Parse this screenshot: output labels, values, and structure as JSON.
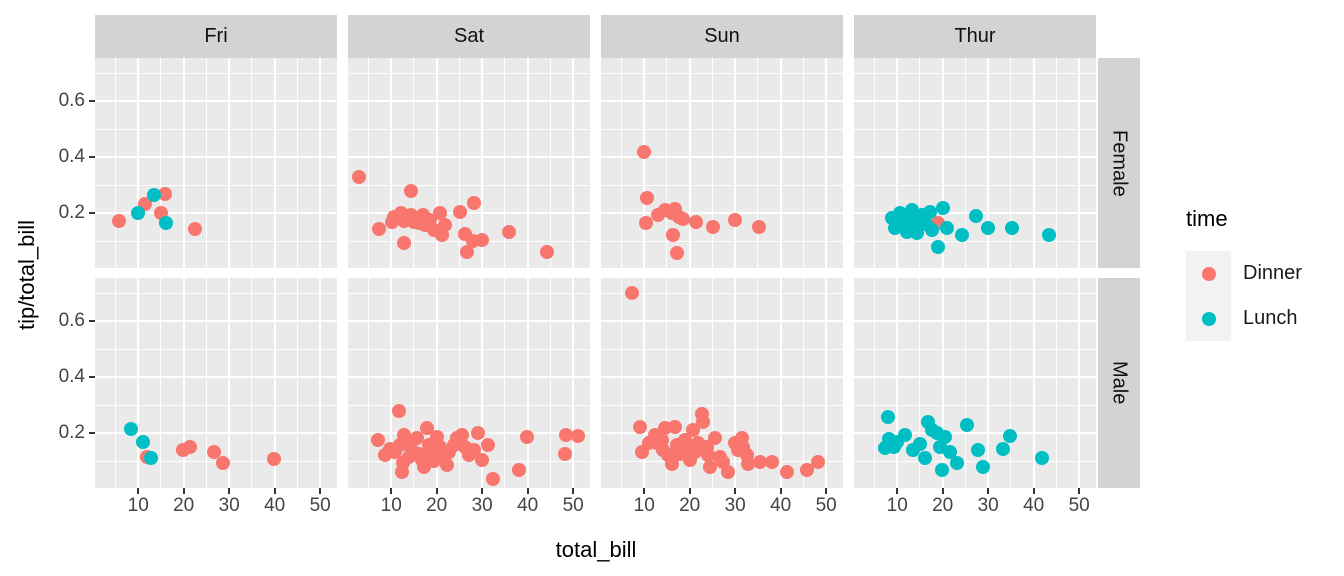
{
  "titles": {
    "x": "total_bill",
    "y": "tip/total_bill"
  },
  "legend": {
    "title": "time",
    "items": [
      {
        "label": "Dinner",
        "color": "#F8766D"
      },
      {
        "label": "Lunch",
        "color": "#00BFC4"
      }
    ]
  },
  "style": {
    "panel_bg": "#EAEAEA",
    "strip_bg": "#D3D3D3",
    "grid_color": "#FFFFFF",
    "dinner_color": "#F8766D",
    "lunch_color": "#00BFC4",
    "tick_text_color": "#454545"
  },
  "chart_data": {
    "type": "scatter",
    "title": "",
    "xlabel": "total_bill",
    "ylabel": "tip/total_bill",
    "facet_cols": [
      "Fri",
      "Sat",
      "Sun",
      "Thur"
    ],
    "facet_rows": [
      "Female",
      "Male"
    ],
    "legend_title": "time",
    "series_names": [
      "Dinner",
      "Lunch"
    ],
    "x_ticks": [
      10,
      20,
      30,
      40,
      50
    ],
    "x_minor_ticks": [
      5,
      15,
      25,
      35,
      45
    ],
    "y_ticks": [
      0.2,
      0.4,
      0.6
    ],
    "y_tick_labels": [
      "0.2",
      "0.4",
      "0.6"
    ],
    "y_minor_ticks": [
      0.1,
      0.3,
      0.5,
      0.7
    ],
    "x_range": [
      0.5,
      53.7
    ],
    "y_range": [
      0.004,
      0.754
    ],
    "grid": true,
    "legend_position": "right",
    "panels": [
      {
        "day": "Fri",
        "sex": "Female",
        "dinner": [
          [
            5.7,
            0.172
          ],
          [
            11.4,
            0.231
          ],
          [
            15.0,
            0.199
          ],
          [
            15.8,
            0.267
          ],
          [
            22.5,
            0.145
          ]
        ],
        "lunch": [
          [
            9.9,
            0.199
          ],
          [
            13.4,
            0.264
          ],
          [
            16.0,
            0.163
          ]
        ]
      },
      {
        "day": "Sat",
        "sex": "Female",
        "dinner": [
          [
            3.0,
            0.33
          ],
          [
            14.4,
            0.28
          ],
          [
            7.4,
            0.142
          ],
          [
            10.2,
            0.169
          ],
          [
            10.7,
            0.187
          ],
          [
            12.2,
            0.199
          ],
          [
            12.9,
            0.172
          ],
          [
            14.4,
            0.193
          ],
          [
            15.1,
            0.169
          ],
          [
            15.6,
            0.181
          ],
          [
            16.2,
            0.163
          ],
          [
            17.0,
            0.193
          ],
          [
            17.5,
            0.157
          ],
          [
            18.6,
            0.175
          ],
          [
            12.9,
            0.092
          ],
          [
            19.3,
            0.139
          ],
          [
            20.8,
            0.199
          ],
          [
            21.1,
            0.121
          ],
          [
            21.9,
            0.157
          ],
          [
            25.2,
            0.205
          ],
          [
            26.3,
            0.127
          ],
          [
            28.1,
            0.235
          ],
          [
            28.0,
            0.1
          ],
          [
            29.9,
            0.104
          ],
          [
            26.6,
            0.062
          ],
          [
            35.8,
            0.133
          ],
          [
            44.2,
            0.062
          ]
        ],
        "lunch": []
      },
      {
        "day": "Sun",
        "sex": "Female",
        "dinner": [
          [
            9.9,
            0.419
          ],
          [
            10.6,
            0.255
          ],
          [
            10.4,
            0.163
          ],
          [
            13.1,
            0.193
          ],
          [
            14.6,
            0.211
          ],
          [
            16.0,
            0.2
          ],
          [
            16.8,
            0.214
          ],
          [
            17.7,
            0.185
          ],
          [
            18.5,
            0.18
          ],
          [
            16.4,
            0.121
          ],
          [
            17.2,
            0.059
          ],
          [
            21.4,
            0.169
          ],
          [
            25.2,
            0.151
          ],
          [
            30.0,
            0.175
          ],
          [
            35.3,
            0.151
          ]
        ],
        "lunch": []
      },
      {
        "day": "Thur",
        "sex": "Female",
        "dinner": [
          [
            19.0,
            0.164
          ]
        ],
        "lunch": [
          [
            8.9,
            0.182
          ],
          [
            9.6,
            0.146
          ],
          [
            10.7,
            0.2
          ],
          [
            11.3,
            0.168
          ],
          [
            12.2,
            0.132
          ],
          [
            12.5,
            0.175
          ],
          [
            13.3,
            0.211
          ],
          [
            13.5,
            0.157
          ],
          [
            14.4,
            0.129
          ],
          [
            14.8,
            0.172
          ],
          [
            15.5,
            0.193
          ],
          [
            16.4,
            0.16
          ],
          [
            17.3,
            0.204
          ],
          [
            17.7,
            0.139
          ],
          [
            19.0,
            0.079
          ],
          [
            20.1,
            0.218
          ],
          [
            21.0,
            0.146
          ],
          [
            24.3,
            0.121
          ],
          [
            27.4,
            0.189
          ],
          [
            30.0,
            0.146
          ],
          [
            35.3,
            0.146
          ],
          [
            43.4,
            0.121
          ]
        ]
      },
      {
        "day": "Fri",
        "sex": "Male",
        "dinner": [
          [
            11.9,
            0.115
          ],
          [
            19.9,
            0.139
          ],
          [
            21.4,
            0.149
          ],
          [
            26.6,
            0.133
          ],
          [
            28.6,
            0.092
          ],
          [
            39.9,
            0.109
          ]
        ],
        "lunch": [
          [
            8.5,
            0.214
          ],
          [
            11.1,
            0.17
          ],
          [
            12.8,
            0.11
          ]
        ]
      },
      {
        "day": "Sat",
        "sex": "Male",
        "dinner": [
          [
            11.8,
            0.28
          ],
          [
            7.1,
            0.175
          ],
          [
            9.8,
            0.145
          ],
          [
            8.7,
            0.121
          ],
          [
            10.9,
            0.133
          ],
          [
            12.0,
            0.157
          ],
          [
            12.9,
            0.193
          ],
          [
            13.5,
            0.169
          ],
          [
            14.5,
            0.139
          ],
          [
            14.0,
            0.113
          ],
          [
            12.7,
            0.092
          ],
          [
            12.4,
            0.062
          ],
          [
            15.6,
            0.181
          ],
          [
            16.0,
            0.127
          ],
          [
            16.7,
            0.104
          ],
          [
            17.1,
            0.08
          ],
          [
            17.8,
            0.217
          ],
          [
            18.2,
            0.157
          ],
          [
            18.9,
            0.133
          ],
          [
            19.3,
            0.101
          ],
          [
            20.0,
            0.187
          ],
          [
            20.8,
            0.151
          ],
          [
            21.5,
            0.115
          ],
          [
            22.2,
            0.086
          ],
          [
            22.8,
            0.133
          ],
          [
            23.7,
            0.157
          ],
          [
            24.4,
            0.181
          ],
          [
            25.5,
            0.193
          ],
          [
            26.3,
            0.151
          ],
          [
            27.2,
            0.121
          ],
          [
            28.1,
            0.139
          ],
          [
            29.0,
            0.199
          ],
          [
            29.9,
            0.104
          ],
          [
            31.2,
            0.157
          ],
          [
            32.4,
            0.036
          ],
          [
            38.0,
            0.068
          ],
          [
            39.8,
            0.187
          ],
          [
            48.2,
            0.127
          ],
          [
            48.5,
            0.193
          ],
          [
            51.0,
            0.19
          ]
        ],
        "lunch": []
      },
      {
        "day": "Sun",
        "sex": "Male",
        "dinner": [
          [
            7.3,
            0.7
          ],
          [
            9.1,
            0.223
          ],
          [
            9.5,
            0.133
          ],
          [
            11.0,
            0.163
          ],
          [
            12.4,
            0.193
          ],
          [
            12.8,
            0.163
          ],
          [
            13.9,
            0.175
          ],
          [
            14.6,
            0.217
          ],
          [
            14.2,
            0.139
          ],
          [
            15.3,
            0.121
          ],
          [
            16.1,
            0.091
          ],
          [
            16.8,
            0.223
          ],
          [
            17.2,
            0.157
          ],
          [
            17.9,
            0.127
          ],
          [
            19.0,
            0.175
          ],
          [
            19.7,
            0.145
          ],
          [
            20.1,
            0.103
          ],
          [
            20.8,
            0.211
          ],
          [
            21.2,
            0.133
          ],
          [
            21.9,
            0.163
          ],
          [
            22.7,
            0.27
          ],
          [
            23.0,
            0.24
          ],
          [
            23.8,
            0.151
          ],
          [
            24.1,
            0.121
          ],
          [
            24.5,
            0.079
          ],
          [
            25.6,
            0.181
          ],
          [
            26.7,
            0.115
          ],
          [
            27.4,
            0.097
          ],
          [
            28.5,
            0.061
          ],
          [
            30.0,
            0.163
          ],
          [
            30.7,
            0.139
          ],
          [
            31.5,
            0.181
          ],
          [
            31.8,
            0.151
          ],
          [
            32.6,
            0.121
          ],
          [
            32.9,
            0.091
          ],
          [
            35.5,
            0.097
          ],
          [
            38.1,
            0.097
          ],
          [
            41.4,
            0.061
          ],
          [
            45.8,
            0.067
          ],
          [
            48.3,
            0.097
          ]
        ],
        "lunch": []
      },
      {
        "day": "Thur",
        "sex": "Male",
        "dinner": [],
        "lunch": [
          [
            8.0,
            0.258
          ],
          [
            8.2,
            0.179
          ],
          [
            7.3,
            0.148
          ],
          [
            9.3,
            0.152
          ],
          [
            10.0,
            0.169
          ],
          [
            11.8,
            0.193
          ],
          [
            13.5,
            0.139
          ],
          [
            15.1,
            0.161
          ],
          [
            16.2,
            0.111
          ],
          [
            16.8,
            0.24
          ],
          [
            17.7,
            0.211
          ],
          [
            18.8,
            0.2
          ],
          [
            19.5,
            0.151
          ],
          [
            20.5,
            0.187
          ],
          [
            19.9,
            0.068
          ],
          [
            21.6,
            0.133
          ],
          [
            23.2,
            0.093
          ],
          [
            25.4,
            0.229
          ],
          [
            27.8,
            0.139
          ],
          [
            28.9,
            0.079
          ],
          [
            33.3,
            0.145
          ],
          [
            34.8,
            0.189
          ],
          [
            41.9,
            0.111
          ]
        ]
      }
    ]
  }
}
